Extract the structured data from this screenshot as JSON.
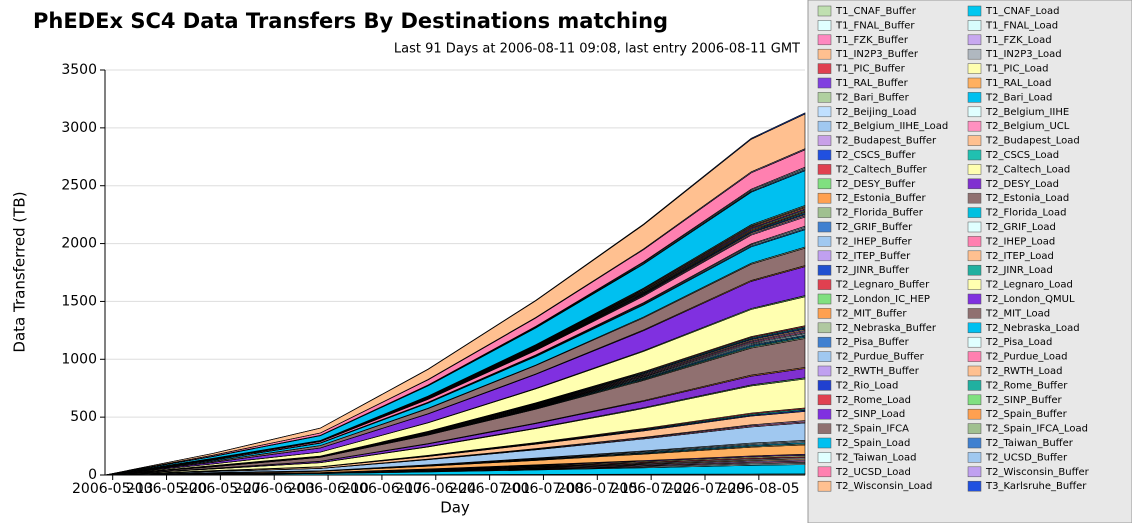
{
  "chart_data": {
    "type": "stacked_area",
    "title": "PhEDEx SC4 Data Transfers By Destinations matching",
    "subtitle": "Last 91 Days at 2006-08-11 09:08, last entry 2006-08-11 GMT",
    "ylabel": "Data Transferred (TB)",
    "xlabel": "Day",
    "ylim": [
      0,
      3500
    ],
    "yticks": [
      0,
      500,
      1000,
      1500,
      2000,
      2500,
      3000,
      3500
    ],
    "xlim": [
      "2006-05-12",
      "2006-08-11"
    ],
    "xticks": [
      "2006-05-13",
      "2006-05-20",
      "2006-05-27",
      "2006-06-03",
      "2006-06-10",
      "2006-06-17",
      "2006-06-24",
      "2006-07-01",
      "2006-07-08",
      "2006-07-15",
      "2006-07-22",
      "2006-07-29",
      "2006-08-05"
    ],
    "x": [
      "2006-05-12",
      "2006-05-26",
      "2006-06-09",
      "2006-06-23",
      "2006-07-07",
      "2006-07-21",
      "2006-08-04",
      "2006-08-11"
    ],
    "series": [
      {
        "name": "T1_CNAF_Buffer",
        "color": "#c0e0b0",
        "values": [
          0,
          1,
          1,
          3,
          5,
          7,
          9,
          10
        ]
      },
      {
        "name": "T1_CNAF_Load",
        "color": "#00c8f0",
        "values": [
          0,
          4,
          11,
          23,
          38,
          55,
          75,
          80
        ]
      },
      {
        "name": "T1_FNAL_Buffer",
        "color": "#e0ffff",
        "values": [
          0,
          1,
          1,
          3,
          5,
          7,
          9,
          10
        ]
      },
      {
        "name": "T1_FNAL_Load",
        "color": "#d8fcfc",
        "values": [
          0,
          1,
          1,
          3,
          5,
          7,
          9,
          10
        ]
      },
      {
        "name": "T1_FZK_Buffer",
        "color": "#ff88c0",
        "values": [
          0,
          1,
          1,
          3,
          5,
          7,
          9,
          10
        ]
      },
      {
        "name": "T1_FZK_Load",
        "color": "#c8a8f0",
        "values": [
          0,
          1,
          1,
          3,
          5,
          7,
          9,
          10
        ]
      },
      {
        "name": "T1_IN2P3_Buffer",
        "color": "#ffc090",
        "values": [
          0,
          1,
          1,
          3,
          5,
          7,
          9,
          10
        ]
      },
      {
        "name": "T1_IN2P3_Load",
        "color": "#b0b8c0",
        "values": [
          0,
          1,
          1,
          3,
          5,
          7,
          9,
          10
        ]
      },
      {
        "name": "T1_PIC_Buffer",
        "color": "#e04050",
        "values": [
          0,
          1,
          1,
          3,
          5,
          7,
          9,
          10
        ]
      },
      {
        "name": "T1_PIC_Load",
        "color": "#ffffb0",
        "values": [
          0,
          1,
          1,
          3,
          5,
          7,
          9,
          10
        ]
      },
      {
        "name": "T1_RAL_Buffer",
        "color": "#8040e0",
        "values": [
          0,
          1,
          1,
          3,
          5,
          7,
          9,
          10
        ]
      },
      {
        "name": "T1_RAL_Load",
        "color": "#ffb060",
        "values": [
          0,
          4,
          11,
          23,
          38,
          55,
          75,
          80
        ]
      },
      {
        "name": "T2_Bari_Buffer",
        "color": "#b0d0a0",
        "values": [
          0,
          1,
          1,
          3,
          5,
          7,
          9,
          10
        ]
      },
      {
        "name": "T2_Bari_Load",
        "color": "#00c0f0",
        "values": [
          0,
          1,
          1,
          3,
          5,
          7,
          9,
          10
        ]
      },
      {
        "name": "T2_Beijing_Load",
        "color": "#c0e0ff",
        "values": [
          0,
          1,
          1,
          3,
          5,
          7,
          9,
          10
        ]
      },
      {
        "name": "T2_Belgium_IIHE",
        "color": "#e0ffff",
        "values": [
          0,
          1,
          1,
          3,
          5,
          7,
          9,
          10
        ]
      },
      {
        "name": "T2_Belgium_IIHE_Load",
        "color": "#a0c8f0",
        "values": [
          0,
          8,
          20,
          44,
          72,
          104,
          140,
          150
        ]
      },
      {
        "name": "T2_Belgium_UCL",
        "color": "#ff90c0",
        "values": [
          0,
          1,
          1,
          3,
          5,
          7,
          9,
          10
        ]
      },
      {
        "name": "T2_Budapest_Buffer",
        "color": "#c8a0e8",
        "values": [
          0,
          1,
          1,
          3,
          5,
          7,
          9,
          10
        ]
      },
      {
        "name": "T2_Budapest_Load",
        "color": "#ffc090",
        "values": [
          0,
          4,
          11,
          23,
          38,
          55,
          75,
          80
        ]
      },
      {
        "name": "T2_CSCS_Buffer",
        "color": "#2050e0",
        "values": [
          0,
          1,
          1,
          3,
          5,
          7,
          9,
          10
        ]
      },
      {
        "name": "T2_CSCS_Load",
        "color": "#20c0b0",
        "values": [
          0,
          1,
          1,
          3,
          5,
          7,
          9,
          10
        ]
      },
      {
        "name": "T2_Caltech_Buffer",
        "color": "#e04050",
        "values": [
          0,
          1,
          1,
          3,
          5,
          7,
          9,
          10
        ]
      },
      {
        "name": "T2_Caltech_Load",
        "color": "#ffffb0",
        "values": [
          0,
          13,
          34,
          73,
          120,
          173,
          234,
          250
        ]
      },
      {
        "name": "T2_DESY_Buffer",
        "color": "#80e080",
        "values": [
          0,
          1,
          1,
          3,
          5,
          7,
          9,
          10
        ]
      },
      {
        "name": "T2_DESY_Load",
        "color": "#8030d0",
        "values": [
          0,
          4,
          11,
          23,
          38,
          55,
          75,
          80
        ]
      },
      {
        "name": "T2_Estonia_Buffer",
        "color": "#ffa050",
        "values": [
          0,
          1,
          1,
          3,
          5,
          7,
          9,
          10
        ]
      },
      {
        "name": "T2_Estonia_Load",
        "color": "#907070",
        "values": [
          0,
          13,
          34,
          73,
          120,
          173,
          234,
          250
        ]
      },
      {
        "name": "T2_Florida_Buffer",
        "color": "#a0c090",
        "values": [
          0,
          1,
          1,
          3,
          5,
          7,
          9,
          10
        ]
      },
      {
        "name": "T2_Florida_Load",
        "color": "#00c0e0",
        "values": [
          0,
          1,
          1,
          3,
          5,
          7,
          9,
          10
        ]
      },
      {
        "name": "T2_GRIF_Buffer",
        "color": "#4080d0",
        "values": [
          0,
          1,
          1,
          3,
          5,
          7,
          9,
          10
        ]
      },
      {
        "name": "T2_GRIF_Load",
        "color": "#e0ffff",
        "values": [
          0,
          1,
          1,
          3,
          5,
          7,
          9,
          10
        ]
      },
      {
        "name": "T2_IHEP_Buffer",
        "color": "#a0c8f0",
        "values": [
          0,
          1,
          1,
          3,
          5,
          7,
          9,
          10
        ]
      },
      {
        "name": "T2_IHEP_Load",
        "color": "#ff80b0",
        "values": [
          0,
          1,
          1,
          3,
          5,
          7,
          9,
          10
        ]
      },
      {
        "name": "T2_ITEP_Buffer",
        "color": "#c0a0f0",
        "values": [
          0,
          1,
          1,
          3,
          5,
          7,
          9,
          10
        ]
      },
      {
        "name": "T2_ITEP_Load",
        "color": "#ffc090",
        "values": [
          0,
          1,
          1,
          3,
          5,
          7,
          9,
          10
        ]
      },
      {
        "name": "T2_JINR_Buffer",
        "color": "#2050d0",
        "values": [
          0,
          1,
          1,
          3,
          5,
          7,
          9,
          10
        ]
      },
      {
        "name": "T2_JINR_Load",
        "color": "#20b0a0",
        "values": [
          0,
          1,
          1,
          3,
          5,
          7,
          9,
          10
        ]
      },
      {
        "name": "T2_Legnaro_Buffer",
        "color": "#e04050",
        "values": [
          0,
          1,
          1,
          3,
          5,
          7,
          9,
          10
        ]
      },
      {
        "name": "T2_Legnaro_Load",
        "color": "#ffffb0",
        "values": [
          0,
          13,
          34,
          73,
          120,
          173,
          234,
          250
        ]
      },
      {
        "name": "T2_London_IC_HEP",
        "color": "#80e080",
        "values": [
          0,
          1,
          1,
          3,
          5,
          7,
          9,
          10
        ]
      },
      {
        "name": "T2_London_QMUL",
        "color": "#8030e0",
        "values": [
          0,
          13,
          34,
          73,
          120,
          173,
          234,
          250
        ]
      },
      {
        "name": "T2_MIT_Buffer",
        "color": "#ffa050",
        "values": [
          0,
          1,
          1,
          3,
          5,
          7,
          9,
          10
        ]
      },
      {
        "name": "T2_MIT_Load",
        "color": "#907070",
        "values": [
          0,
          8,
          20,
          44,
          72,
          104,
          140,
          150
        ]
      },
      {
        "name": "T2_Nebraska_Buffer",
        "color": "#b0c8a0",
        "values": [
          0,
          1,
          1,
          3,
          5,
          7,
          9,
          10
        ]
      },
      {
        "name": "T2_Nebraska_Load",
        "color": "#00c0f0",
        "values": [
          0,
          8,
          20,
          44,
          72,
          104,
          140,
          150
        ]
      },
      {
        "name": "T2_Pisa_Buffer",
        "color": "#4080d0",
        "values": [
          0,
          1,
          1,
          3,
          5,
          7,
          9,
          10
        ]
      },
      {
        "name": "T2_Pisa_Load",
        "color": "#e0ffff",
        "values": [
          0,
          1,
          1,
          3,
          5,
          7,
          9,
          10
        ]
      },
      {
        "name": "T2_Purdue_Buffer",
        "color": "#a0c8f0",
        "values": [
          0,
          1,
          1,
          3,
          5,
          7,
          9,
          10
        ]
      },
      {
        "name": "T2_Purdue_Load",
        "color": "#ff80b0",
        "values": [
          0,
          4,
          11,
          23,
          38,
          55,
          75,
          80
        ]
      },
      {
        "name": "T2_RWTH_Buffer",
        "color": "#c0a0f0",
        "values": [
          0,
          1,
          1,
          3,
          5,
          7,
          9,
          10
        ]
      },
      {
        "name": "T2_RWTH_Load",
        "color": "#ffc090",
        "values": [
          0,
          1,
          1,
          3,
          5,
          7,
          9,
          10
        ]
      },
      {
        "name": "T2_Rio_Load",
        "color": "#2040d0",
        "values": [
          0,
          1,
          1,
          3,
          5,
          7,
          9,
          10
        ]
      },
      {
        "name": "T2_Rome_Buffer",
        "color": "#20b0a0",
        "values": [
          0,
          1,
          1,
          3,
          5,
          7,
          9,
          10
        ]
      },
      {
        "name": "T2_Rome_Load",
        "color": "#e04050",
        "values": [
          0,
          1,
          1,
          3,
          5,
          7,
          9,
          10
        ]
      },
      {
        "name": "T2_SINP_Buffer",
        "color": "#80e080",
        "values": [
          0,
          1,
          1,
          3,
          5,
          7,
          9,
          10
        ]
      },
      {
        "name": "T2_SINP_Load",
        "color": "#8030e0",
        "values": [
          0,
          1,
          1,
          3,
          5,
          7,
          9,
          10
        ]
      },
      {
        "name": "T2_Spain_Buffer",
        "color": "#ffa050",
        "values": [
          0,
          1,
          1,
          3,
          5,
          7,
          9,
          10
        ]
      },
      {
        "name": "T2_Spain_IFCA",
        "color": "#907070",
        "values": [
          0,
          1,
          1,
          3,
          5,
          7,
          9,
          10
        ]
      },
      {
        "name": "T2_Spain_IFCA_Load",
        "color": "#a0c090",
        "values": [
          0,
          1,
          1,
          3,
          5,
          7,
          9,
          10
        ]
      },
      {
        "name": "T2_Spain_Load",
        "color": "#00c0f0",
        "values": [
          0,
          15,
          41,
          87,
          144,
          207,
          281,
          300
        ]
      },
      {
        "name": "T2_Taiwan_Buffer",
        "color": "#4080d0",
        "values": [
          0,
          1,
          1,
          3,
          5,
          7,
          9,
          10
        ]
      },
      {
        "name": "T2_Taiwan_Load",
        "color": "#e0ffff",
        "values": [
          0,
          1,
          1,
          3,
          5,
          7,
          9,
          10
        ]
      },
      {
        "name": "T2_UCSD_Buffer",
        "color": "#a0c8f0",
        "values": [
          0,
          1,
          1,
          3,
          5,
          7,
          9,
          10
        ]
      },
      {
        "name": "T2_UCSD_Load",
        "color": "#ff80b0",
        "values": [
          0,
          8,
          20,
          44,
          72,
          104,
          140,
          150
        ]
      },
      {
        "name": "T2_Wisconsin_Buffer",
        "color": "#c0a0f0",
        "values": [
          0,
          1,
          1,
          3,
          5,
          7,
          9,
          10
        ]
      },
      {
        "name": "T2_Wisconsin_Load",
        "color": "#ffc090",
        "values": [
          0,
          15,
          41,
          87,
          144,
          207,
          281,
          300
        ]
      },
      {
        "name": "T3_Karlsruhe_Buffer",
        "color": "#2050e0",
        "values": [
          0,
          1,
          1,
          3,
          5,
          7,
          9,
          10
        ]
      }
    ]
  }
}
